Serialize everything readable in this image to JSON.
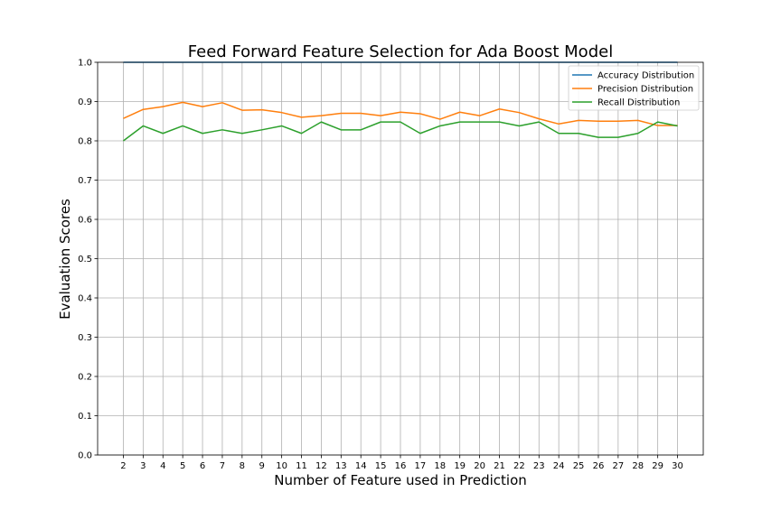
{
  "chart_data": {
    "type": "line",
    "title": "Feed Forward Feature Selection for Ada Boost Model",
    "xlabel": "Number of Feature used in Prediction",
    "ylabel": "Evaluation Scores",
    "x": [
      2,
      3,
      4,
      5,
      6,
      7,
      8,
      9,
      10,
      11,
      12,
      13,
      14,
      15,
      16,
      17,
      18,
      19,
      20,
      21,
      22,
      23,
      24,
      25,
      26,
      27,
      28,
      29,
      30
    ],
    "xlim": [
      0.7,
      31.3
    ],
    "ylim": [
      0.0,
      1.0
    ],
    "yticks": [
      0.0,
      0.1,
      0.2,
      0.3,
      0.4,
      0.5,
      0.6,
      0.7,
      0.8,
      0.9,
      1.0
    ],
    "ytick_labels": [
      "0.0",
      "0.1",
      "0.2",
      "0.3",
      "0.4",
      "0.5",
      "0.6",
      "0.7",
      "0.8",
      "0.9",
      "1.0"
    ],
    "grid": true,
    "legend_position": "top-right",
    "series": [
      {
        "name": "Accuracy Distribution",
        "color": "#1f77b4",
        "values": [
          1,
          1,
          1,
          1,
          1,
          1,
          1,
          1,
          1,
          1,
          1,
          1,
          1,
          1,
          1,
          1,
          1,
          1,
          1,
          1,
          1,
          1,
          1,
          1,
          1,
          1,
          1,
          1,
          1
        ]
      },
      {
        "name": "Precision Distribution",
        "color": "#ff7f0e",
        "values": [
          0.857,
          0.88,
          0.887,
          0.898,
          0.887,
          0.897,
          0.878,
          0.879,
          0.872,
          0.86,
          0.864,
          0.87,
          0.87,
          0.864,
          0.873,
          0.869,
          0.855,
          0.873,
          0.864,
          0.881,
          0.872,
          0.856,
          0.843,
          0.852,
          0.85,
          0.85,
          0.852,
          0.839,
          0.839
        ]
      },
      {
        "name": "Recall Distribution",
        "color": "#2ca02c",
        "values": [
          0.8,
          0.838,
          0.819,
          0.838,
          0.819,
          0.828,
          0.819,
          0.828,
          0.838,
          0.819,
          0.848,
          0.828,
          0.828,
          0.848,
          0.848,
          0.819,
          0.838,
          0.848,
          0.848,
          0.848,
          0.838,
          0.848,
          0.819,
          0.819,
          0.809,
          0.809,
          0.819,
          0.848,
          0.838
        ]
      }
    ]
  }
}
